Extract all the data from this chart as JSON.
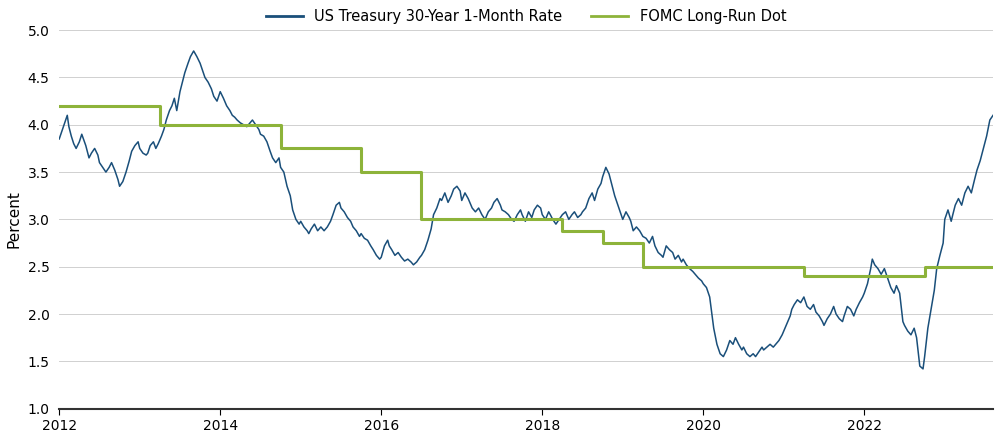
{
  "ylabel": "Percent",
  "xlim": [
    2012.0,
    2023.6
  ],
  "ylim": [
    1.0,
    5.0
  ],
  "yticks": [
    1.0,
    1.5,
    2.0,
    2.5,
    3.0,
    3.5,
    4.0,
    4.5,
    5.0
  ],
  "xticks": [
    2012,
    2014,
    2016,
    2018,
    2020,
    2022
  ],
  "treasury_color": "#1a4f7a",
  "fomc_color": "#8db33a",
  "treasury_label": "US Treasury 30-Year 1-Month Rate",
  "fomc_label": "FOMC Long-Run Dot",
  "fomc_steps": [
    [
      2012.0,
      4.2
    ],
    [
      2013.25,
      4.2
    ],
    [
      2013.25,
      4.0
    ],
    [
      2014.75,
      4.0
    ],
    [
      2014.75,
      3.75
    ],
    [
      2015.75,
      3.75
    ],
    [
      2015.75,
      3.5
    ],
    [
      2016.5,
      3.5
    ],
    [
      2016.5,
      3.0
    ],
    [
      2017.75,
      3.0
    ],
    [
      2017.75,
      3.0
    ],
    [
      2018.25,
      3.0
    ],
    [
      2018.25,
      2.875
    ],
    [
      2018.75,
      2.875
    ],
    [
      2018.75,
      2.75
    ],
    [
      2019.25,
      2.75
    ],
    [
      2019.25,
      2.5
    ],
    [
      2019.75,
      2.5
    ],
    [
      2019.75,
      2.5
    ],
    [
      2020.75,
      2.5
    ],
    [
      2020.75,
      2.5
    ],
    [
      2021.25,
      2.5
    ],
    [
      2021.25,
      2.4
    ],
    [
      2022.75,
      2.4
    ],
    [
      2022.75,
      2.5
    ],
    [
      2023.6,
      2.5
    ]
  ],
  "treasury_data": [
    [
      2012.0,
      3.85
    ],
    [
      2012.04,
      3.95
    ],
    [
      2012.08,
      4.05
    ],
    [
      2012.1,
      4.1
    ],
    [
      2012.12,
      3.98
    ],
    [
      2012.15,
      3.88
    ],
    [
      2012.18,
      3.8
    ],
    [
      2012.21,
      3.75
    ],
    [
      2012.25,
      3.82
    ],
    [
      2012.28,
      3.9
    ],
    [
      2012.33,
      3.78
    ],
    [
      2012.37,
      3.65
    ],
    [
      2012.4,
      3.7
    ],
    [
      2012.44,
      3.75
    ],
    [
      2012.48,
      3.68
    ],
    [
      2012.5,
      3.6
    ],
    [
      2012.54,
      3.55
    ],
    [
      2012.58,
      3.5
    ],
    [
      2012.62,
      3.55
    ],
    [
      2012.65,
      3.6
    ],
    [
      2012.69,
      3.52
    ],
    [
      2012.73,
      3.42
    ],
    [
      2012.75,
      3.35
    ],
    [
      2012.79,
      3.4
    ],
    [
      2012.83,
      3.5
    ],
    [
      2012.87,
      3.62
    ],
    [
      2012.9,
      3.72
    ],
    [
      2012.94,
      3.78
    ],
    [
      2012.98,
      3.82
    ],
    [
      2013.0,
      3.75
    ],
    [
      2013.04,
      3.7
    ],
    [
      2013.08,
      3.68
    ],
    [
      2013.1,
      3.7
    ],
    [
      2013.13,
      3.78
    ],
    [
      2013.17,
      3.82
    ],
    [
      2013.2,
      3.75
    ],
    [
      2013.23,
      3.8
    ],
    [
      2013.27,
      3.88
    ],
    [
      2013.3,
      3.95
    ],
    [
      2013.33,
      4.05
    ],
    [
      2013.37,
      4.15
    ],
    [
      2013.4,
      4.2
    ],
    [
      2013.43,
      4.28
    ],
    [
      2013.46,
      4.15
    ],
    [
      2013.5,
      4.35
    ],
    [
      2013.53,
      4.45
    ],
    [
      2013.56,
      4.55
    ],
    [
      2013.6,
      4.65
    ],
    [
      2013.63,
      4.72
    ],
    [
      2013.67,
      4.78
    ],
    [
      2013.71,
      4.72
    ],
    [
      2013.75,
      4.65
    ],
    [
      2013.77,
      4.6
    ],
    [
      2013.81,
      4.5
    ],
    [
      2013.85,
      4.45
    ],
    [
      2013.89,
      4.38
    ],
    [
      2013.92,
      4.3
    ],
    [
      2013.96,
      4.25
    ],
    [
      2014.0,
      4.35
    ],
    [
      2014.0,
      4.35
    ],
    [
      2014.04,
      4.28
    ],
    [
      2014.08,
      4.2
    ],
    [
      2014.12,
      4.15
    ],
    [
      2014.15,
      4.1
    ],
    [
      2014.18,
      4.08
    ],
    [
      2014.21,
      4.05
    ],
    [
      2014.25,
      4.02
    ],
    [
      2014.29,
      4.0
    ],
    [
      2014.33,
      3.98
    ],
    [
      2014.37,
      4.02
    ],
    [
      2014.4,
      4.05
    ],
    [
      2014.44,
      4.0
    ],
    [
      2014.48,
      3.95
    ],
    [
      2014.5,
      3.9
    ],
    [
      2014.54,
      3.88
    ],
    [
      2014.58,
      3.82
    ],
    [
      2014.62,
      3.72
    ],
    [
      2014.65,
      3.65
    ],
    [
      2014.69,
      3.6
    ],
    [
      2014.73,
      3.65
    ],
    [
      2014.75,
      3.55
    ],
    [
      2014.79,
      3.5
    ],
    [
      2014.83,
      3.35
    ],
    [
      2014.87,
      3.25
    ],
    [
      2014.9,
      3.1
    ],
    [
      2014.94,
      3.0
    ],
    [
      2014.98,
      2.95
    ],
    [
      2015.0,
      2.98
    ],
    [
      2015.04,
      2.92
    ],
    [
      2015.08,
      2.88
    ],
    [
      2015.1,
      2.85
    ],
    [
      2015.13,
      2.9
    ],
    [
      2015.17,
      2.95
    ],
    [
      2015.21,
      2.88
    ],
    [
      2015.25,
      2.92
    ],
    [
      2015.29,
      2.88
    ],
    [
      2015.33,
      2.92
    ],
    [
      2015.37,
      2.98
    ],
    [
      2015.4,
      3.05
    ],
    [
      2015.44,
      3.15
    ],
    [
      2015.48,
      3.18
    ],
    [
      2015.5,
      3.12
    ],
    [
      2015.54,
      3.08
    ],
    [
      2015.58,
      3.02
    ],
    [
      2015.62,
      2.98
    ],
    [
      2015.65,
      2.92
    ],
    [
      2015.69,
      2.88
    ],
    [
      2015.73,
      2.82
    ],
    [
      2015.75,
      2.85
    ],
    [
      2015.79,
      2.8
    ],
    [
      2015.83,
      2.78
    ],
    [
      2015.87,
      2.72
    ],
    [
      2015.9,
      2.68
    ],
    [
      2015.94,
      2.62
    ],
    [
      2015.98,
      2.58
    ],
    [
      2016.0,
      2.6
    ],
    [
      2016.04,
      2.72
    ],
    [
      2016.08,
      2.78
    ],
    [
      2016.1,
      2.72
    ],
    [
      2016.13,
      2.68
    ],
    [
      2016.17,
      2.62
    ],
    [
      2016.21,
      2.65
    ],
    [
      2016.25,
      2.6
    ],
    [
      2016.29,
      2.56
    ],
    [
      2016.33,
      2.58
    ],
    [
      2016.37,
      2.55
    ],
    [
      2016.4,
      2.52
    ],
    [
      2016.44,
      2.55
    ],
    [
      2016.48,
      2.6
    ],
    [
      2016.5,
      2.62
    ],
    [
      2016.54,
      2.68
    ],
    [
      2016.58,
      2.78
    ],
    [
      2016.62,
      2.9
    ],
    [
      2016.65,
      3.05
    ],
    [
      2016.69,
      3.12
    ],
    [
      2016.73,
      3.22
    ],
    [
      2016.75,
      3.2
    ],
    [
      2016.79,
      3.28
    ],
    [
      2016.83,
      3.18
    ],
    [
      2016.87,
      3.25
    ],
    [
      2016.9,
      3.32
    ],
    [
      2016.94,
      3.35
    ],
    [
      2016.98,
      3.3
    ],
    [
      2017.0,
      3.2
    ],
    [
      2017.04,
      3.28
    ],
    [
      2017.08,
      3.22
    ],
    [
      2017.1,
      3.18
    ],
    [
      2017.13,
      3.12
    ],
    [
      2017.17,
      3.08
    ],
    [
      2017.21,
      3.12
    ],
    [
      2017.25,
      3.05
    ],
    [
      2017.29,
      3.0
    ],
    [
      2017.33,
      3.08
    ],
    [
      2017.37,
      3.12
    ],
    [
      2017.4,
      3.18
    ],
    [
      2017.44,
      3.22
    ],
    [
      2017.48,
      3.15
    ],
    [
      2017.5,
      3.1
    ],
    [
      2017.54,
      3.08
    ],
    [
      2017.58,
      3.05
    ],
    [
      2017.62,
      3.0
    ],
    [
      2017.65,
      2.98
    ],
    [
      2017.69,
      3.05
    ],
    [
      2017.73,
      3.1
    ],
    [
      2017.75,
      3.05
    ],
    [
      2017.79,
      2.98
    ],
    [
      2017.83,
      3.08
    ],
    [
      2017.87,
      3.02
    ],
    [
      2017.9,
      3.1
    ],
    [
      2017.94,
      3.15
    ],
    [
      2017.98,
      3.12
    ],
    [
      2018.0,
      3.05
    ],
    [
      2018.04,
      3.0
    ],
    [
      2018.08,
      3.08
    ],
    [
      2018.1,
      3.05
    ],
    [
      2018.13,
      3.0
    ],
    [
      2018.17,
      2.95
    ],
    [
      2018.21,
      3.0
    ],
    [
      2018.25,
      3.05
    ],
    [
      2018.29,
      3.08
    ],
    [
      2018.33,
      3.0
    ],
    [
      2018.37,
      3.05
    ],
    [
      2018.4,
      3.08
    ],
    [
      2018.44,
      3.02
    ],
    [
      2018.48,
      3.05
    ],
    [
      2018.5,
      3.08
    ],
    [
      2018.54,
      3.12
    ],
    [
      2018.58,
      3.22
    ],
    [
      2018.62,
      3.28
    ],
    [
      2018.65,
      3.2
    ],
    [
      2018.69,
      3.32
    ],
    [
      2018.73,
      3.38
    ],
    [
      2018.75,
      3.45
    ],
    [
      2018.79,
      3.55
    ],
    [
      2018.83,
      3.48
    ],
    [
      2018.87,
      3.35
    ],
    [
      2018.9,
      3.25
    ],
    [
      2018.94,
      3.15
    ],
    [
      2018.98,
      3.05
    ],
    [
      2019.0,
      3.0
    ],
    [
      2019.04,
      3.08
    ],
    [
      2019.08,
      3.02
    ],
    [
      2019.1,
      2.98
    ],
    [
      2019.13,
      2.88
    ],
    [
      2019.17,
      2.92
    ],
    [
      2019.21,
      2.88
    ],
    [
      2019.25,
      2.82
    ],
    [
      2019.29,
      2.8
    ],
    [
      2019.33,
      2.75
    ],
    [
      2019.37,
      2.82
    ],
    [
      2019.4,
      2.72
    ],
    [
      2019.44,
      2.65
    ],
    [
      2019.48,
      2.62
    ],
    [
      2019.5,
      2.6
    ],
    [
      2019.54,
      2.72
    ],
    [
      2019.58,
      2.68
    ],
    [
      2019.62,
      2.65
    ],
    [
      2019.65,
      2.58
    ],
    [
      2019.69,
      2.62
    ],
    [
      2019.73,
      2.55
    ],
    [
      2019.75,
      2.58
    ],
    [
      2019.79,
      2.52
    ],
    [
      2019.83,
      2.48
    ],
    [
      2019.87,
      2.45
    ],
    [
      2019.9,
      2.42
    ],
    [
      2019.94,
      2.38
    ],
    [
      2019.98,
      2.35
    ],
    [
      2020.0,
      2.32
    ],
    [
      2020.04,
      2.28
    ],
    [
      2020.08,
      2.18
    ],
    [
      2020.1,
      2.05
    ],
    [
      2020.13,
      1.85
    ],
    [
      2020.17,
      1.68
    ],
    [
      2020.21,
      1.58
    ],
    [
      2020.25,
      1.55
    ],
    [
      2020.29,
      1.62
    ],
    [
      2020.33,
      1.72
    ],
    [
      2020.37,
      1.68
    ],
    [
      2020.4,
      1.75
    ],
    [
      2020.44,
      1.68
    ],
    [
      2020.48,
      1.62
    ],
    [
      2020.5,
      1.65
    ],
    [
      2020.54,
      1.58
    ],
    [
      2020.58,
      1.55
    ],
    [
      2020.62,
      1.58
    ],
    [
      2020.65,
      1.55
    ],
    [
      2020.69,
      1.6
    ],
    [
      2020.73,
      1.65
    ],
    [
      2020.75,
      1.62
    ],
    [
      2020.79,
      1.65
    ],
    [
      2020.83,
      1.68
    ],
    [
      2020.87,
      1.65
    ],
    [
      2020.9,
      1.68
    ],
    [
      2020.94,
      1.72
    ],
    [
      2020.98,
      1.78
    ],
    [
      2021.0,
      1.82
    ],
    [
      2021.04,
      1.9
    ],
    [
      2021.08,
      1.98
    ],
    [
      2021.1,
      2.05
    ],
    [
      2021.13,
      2.1
    ],
    [
      2021.17,
      2.15
    ],
    [
      2021.21,
      2.12
    ],
    [
      2021.25,
      2.18
    ],
    [
      2021.29,
      2.08
    ],
    [
      2021.33,
      2.05
    ],
    [
      2021.37,
      2.1
    ],
    [
      2021.4,
      2.02
    ],
    [
      2021.44,
      1.98
    ],
    [
      2021.48,
      1.92
    ],
    [
      2021.5,
      1.88
    ],
    [
      2021.54,
      1.95
    ],
    [
      2021.58,
      2.0
    ],
    [
      2021.62,
      2.08
    ],
    [
      2021.65,
      2.0
    ],
    [
      2021.69,
      1.95
    ],
    [
      2021.73,
      1.92
    ],
    [
      2021.75,
      1.98
    ],
    [
      2021.79,
      2.08
    ],
    [
      2021.83,
      2.05
    ],
    [
      2021.87,
      1.98
    ],
    [
      2021.9,
      2.05
    ],
    [
      2021.94,
      2.12
    ],
    [
      2021.98,
      2.18
    ],
    [
      2022.0,
      2.22
    ],
    [
      2022.04,
      2.32
    ],
    [
      2022.08,
      2.48
    ],
    [
      2022.1,
      2.58
    ],
    [
      2022.13,
      2.52
    ],
    [
      2022.17,
      2.48
    ],
    [
      2022.21,
      2.42
    ],
    [
      2022.25,
      2.48
    ],
    [
      2022.29,
      2.38
    ],
    [
      2022.33,
      2.28
    ],
    [
      2022.37,
      2.22
    ],
    [
      2022.4,
      2.3
    ],
    [
      2022.44,
      2.22
    ],
    [
      2022.48,
      1.92
    ],
    [
      2022.5,
      1.88
    ],
    [
      2022.54,
      1.82
    ],
    [
      2022.58,
      1.78
    ],
    [
      2022.62,
      1.85
    ],
    [
      2022.65,
      1.75
    ],
    [
      2022.69,
      1.45
    ],
    [
      2022.73,
      1.42
    ],
    [
      2022.75,
      1.55
    ],
    [
      2022.79,
      1.85
    ],
    [
      2022.83,
      2.05
    ],
    [
      2022.87,
      2.25
    ],
    [
      2022.9,
      2.48
    ],
    [
      2022.94,
      2.62
    ],
    [
      2022.98,
      2.75
    ],
    [
      2023.0,
      3.0
    ],
    [
      2023.04,
      3.1
    ],
    [
      2023.08,
      2.98
    ],
    [
      2023.1,
      3.05
    ],
    [
      2023.13,
      3.15
    ],
    [
      2023.17,
      3.22
    ],
    [
      2023.21,
      3.15
    ],
    [
      2023.25,
      3.28
    ],
    [
      2023.29,
      3.35
    ],
    [
      2023.33,
      3.28
    ],
    [
      2023.37,
      3.42
    ],
    [
      2023.4,
      3.52
    ],
    [
      2023.44,
      3.62
    ],
    [
      2023.48,
      3.75
    ],
    [
      2023.52,
      3.88
    ],
    [
      2023.56,
      4.05
    ],
    [
      2023.6,
      4.1
    ]
  ]
}
